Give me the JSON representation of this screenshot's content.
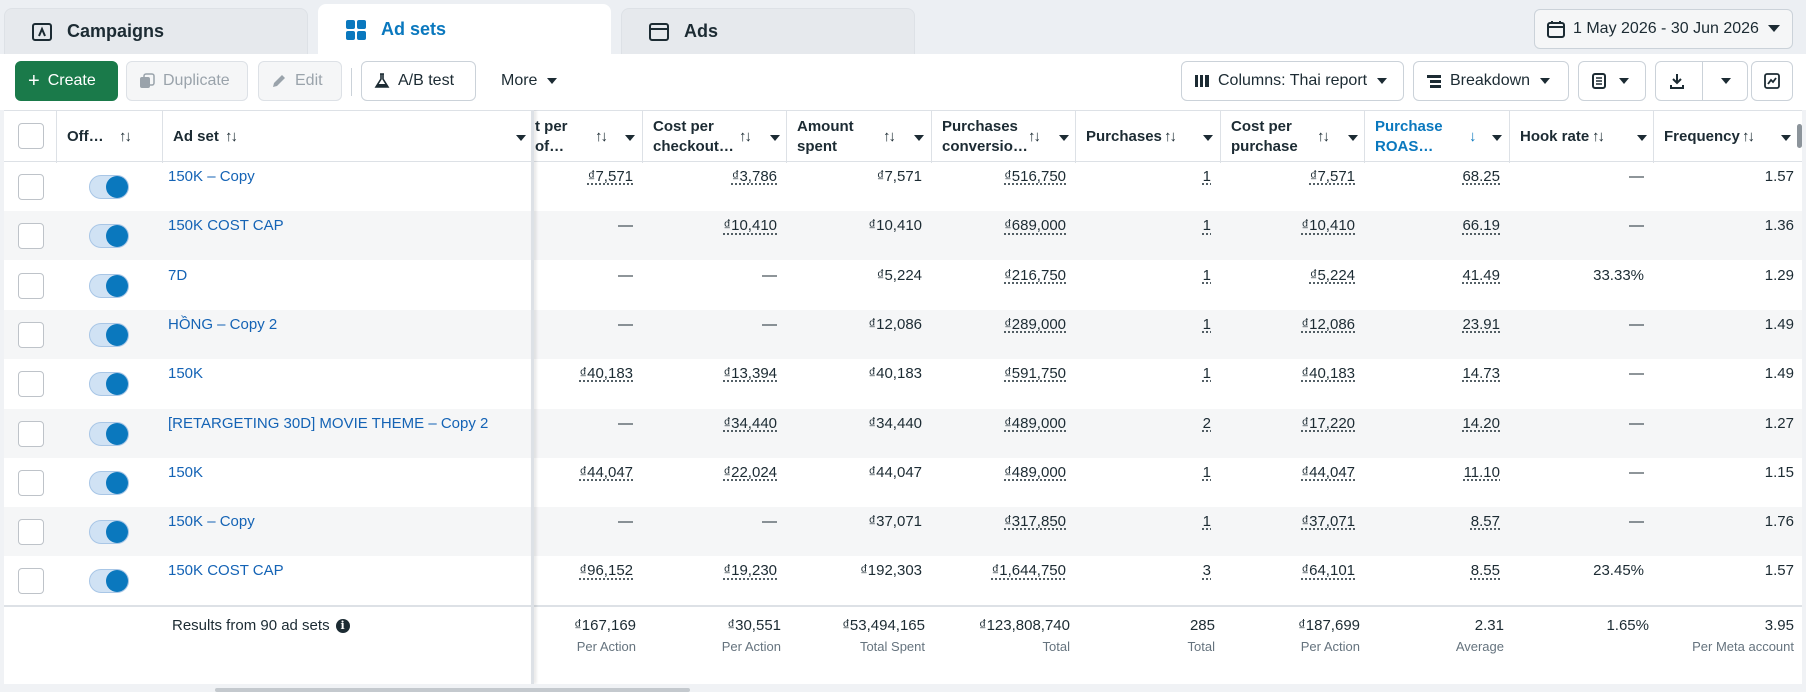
{
  "tabs": [
    {
      "label": "Campaigns",
      "icon": "campaign-folder-icon"
    },
    {
      "label": "Ad sets",
      "icon": "ad-sets-grid-icon"
    },
    {
      "label": "Ads",
      "icon": "ads-window-icon"
    }
  ],
  "date_range": "1 May 2026 - 30 Jun 2026",
  "toolbar": {
    "create": "Create",
    "duplicate": "Duplicate",
    "edit": "Edit",
    "ab_test": "A/B test",
    "more": "More",
    "columns": "Columns: Thai report",
    "breakdown": "Breakdown"
  },
  "headers": {
    "off": "Off…",
    "ad_set": "Ad set",
    "cost_per_of": "t per of…",
    "cost_per_checkout": "Cost per checkout…",
    "amount_spent": "Amount spent",
    "purchases_conversion": "Purchases conversio…",
    "purchases": "Purchases",
    "cost_per_purchase": "Cost per purchase",
    "purchase_roas": "Purchase ROAS…",
    "hook_rate": "Hook rate",
    "frequency": "Frequency"
  },
  "rows": [
    {
      "name": "150K – Copy",
      "c1": "₫7,571",
      "c2": "₫3,786",
      "spent": "₫7,571",
      "conv": "₫516,750",
      "purch": "1",
      "cpp": "₫7,571",
      "roas": "68.25",
      "hook": "—",
      "freq": "1.57"
    },
    {
      "name": "150K COST CAP",
      "c1": "—",
      "c2": "₫10,410",
      "spent": "₫10,410",
      "conv": "₫689,000",
      "purch": "1",
      "cpp": "₫10,410",
      "roas": "66.19",
      "hook": "—",
      "freq": "1.36"
    },
    {
      "name": "7D",
      "c1": "—",
      "c2": "—",
      "spent": "₫5,224",
      "conv": "₫216,750",
      "purch": "1",
      "cpp": "₫5,224",
      "roas": "41.49",
      "hook": "33.33%",
      "freq": "1.29"
    },
    {
      "name": "HỒNG – Copy 2",
      "c1": "—",
      "c2": "—",
      "spent": "₫12,086",
      "conv": "₫289,000",
      "purch": "1",
      "cpp": "₫12,086",
      "roas": "23.91",
      "hook": "—",
      "freq": "1.49"
    },
    {
      "name": "150K",
      "c1": "₫40,183",
      "c2": "₫13,394",
      "spent": "₫40,183",
      "conv": "₫591,750",
      "purch": "1",
      "cpp": "₫40,183",
      "roas": "14.73",
      "hook": "—",
      "freq": "1.49"
    },
    {
      "name": "[RETARGETING 30D] MOVIE THEME – Copy 2",
      "c1": "—",
      "c2": "₫34,440",
      "spent": "₫34,440",
      "conv": "₫489,000",
      "purch": "2",
      "cpp": "₫17,220",
      "roas": "14.20",
      "hook": "—",
      "freq": "1.27"
    },
    {
      "name": "150K",
      "c1": "₫44,047",
      "c2": "₫22,024",
      "spent": "₫44,047",
      "conv": "₫489,000",
      "purch": "1",
      "cpp": "₫44,047",
      "roas": "11.10",
      "hook": "—",
      "freq": "1.15"
    },
    {
      "name": "150K – Copy",
      "c1": "—",
      "c2": "—",
      "spent": "₫37,071",
      "conv": "₫317,850",
      "purch": "1",
      "cpp": "₫37,071",
      "roas": "8.57",
      "hook": "—",
      "freq": "1.76"
    },
    {
      "name": "150K COST CAP",
      "c1": "₫96,152",
      "c2": "₫19,230",
      "spent": "₫192,303",
      "conv": "₫1,644,750",
      "purch": "3",
      "cpp": "₫64,101",
      "roas": "8.55",
      "hook": "23.45%",
      "freq": "1.57"
    }
  ],
  "footer": {
    "results": "Results from 90 ad sets",
    "c1": {
      "value": "₫167,169",
      "sub": "Per Action"
    },
    "c2": {
      "value": "₫30,551",
      "sub": "Per Action"
    },
    "spent": {
      "value": "₫53,494,165",
      "sub": "Total Spent"
    },
    "conv": {
      "value": "₫123,808,740",
      "sub": "Total"
    },
    "purch": {
      "value": "285",
      "sub": "Total"
    },
    "cpp": {
      "value": "₫187,699",
      "sub": "Per Action"
    },
    "roas": {
      "value": "2.31",
      "sub": "Average"
    },
    "hook": {
      "value": "1.65%",
      "sub": ""
    },
    "freq": {
      "value": "3.95",
      "sub": "Per Meta account"
    }
  },
  "colors": {
    "accent": "#0a78be",
    "create_green": "#1a7a4a",
    "link": "#1463b5"
  }
}
